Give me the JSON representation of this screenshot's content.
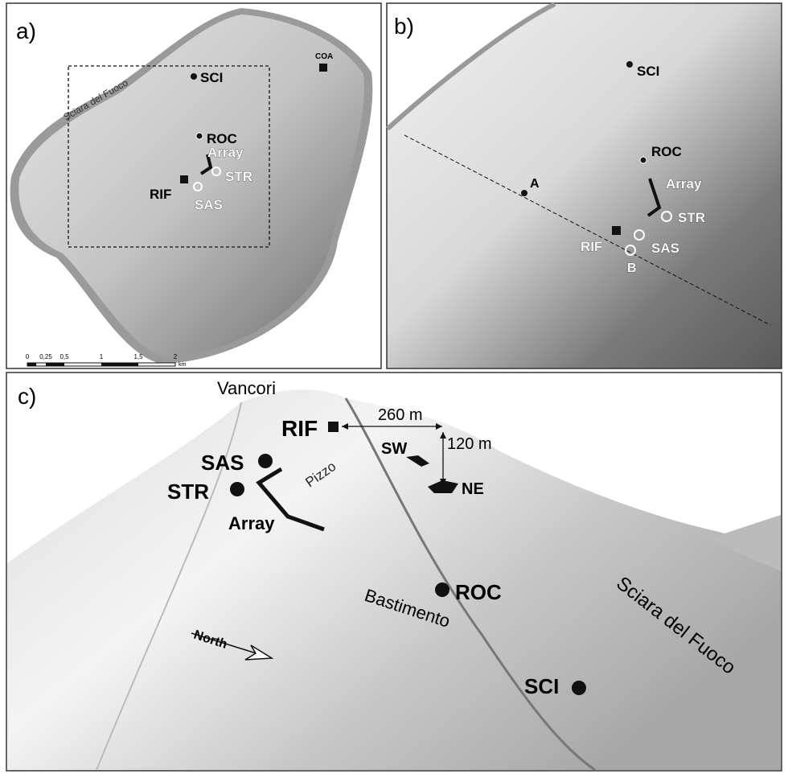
{
  "panel_a": {
    "label": "a)",
    "labels": [
      "Sciara del Fuoco",
      "SCI",
      "COA",
      "ROC",
      "Array",
      "STR",
      "RIF",
      "SAS"
    ],
    "scale": [
      "0",
      "0,25",
      "0,5",
      "1",
      "1,5",
      "2",
      "km"
    ]
  },
  "panel_b": {
    "label": "b)",
    "labels": [
      "SCI",
      "ROC",
      "Array",
      "A",
      "STR",
      "RIF",
      "SAS",
      "B"
    ]
  },
  "panel_c": {
    "label": "c)",
    "labels": [
      "Vancori",
      "RIF",
      "260 m",
      "SW",
      "120 m",
      "SAS",
      "Pizzo",
      "NE",
      "STR",
      "Array",
      "ROC",
      "Bastimento",
      "Sciara del Fuoco",
      "North",
      "SCI"
    ]
  }
}
